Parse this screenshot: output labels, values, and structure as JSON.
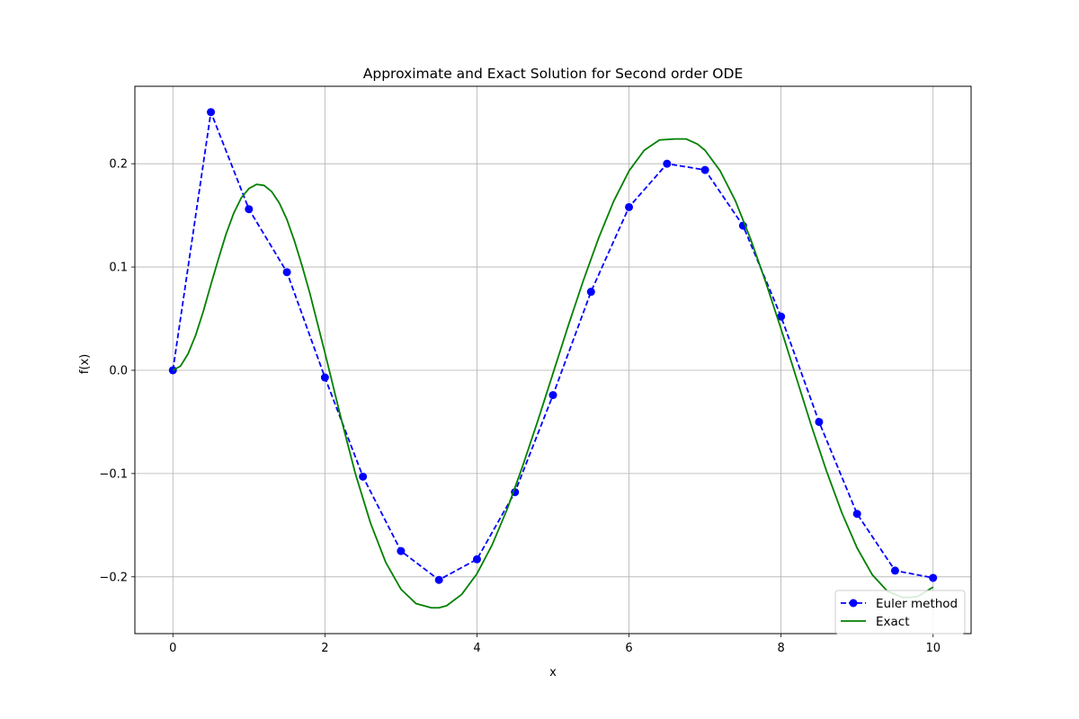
{
  "chart_data": {
    "type": "line",
    "title": "Approximate and Exact Solution for Second order ODE",
    "xlabel": "x",
    "ylabel": "f(x)",
    "xlim": [
      -0.5,
      10.5
    ],
    "ylim": [
      -0.255,
      0.275
    ],
    "xticks": [
      0,
      2,
      4,
      6,
      8,
      10
    ],
    "xtick_labels": [
      "0",
      "2",
      "4",
      "6",
      "8",
      "10"
    ],
    "yticks": [
      -0.2,
      -0.1,
      0.0,
      0.1,
      0.2
    ],
    "ytick_labels": [
      "−0.2",
      "−0.1",
      "0.0",
      "0.1",
      "0.2"
    ],
    "grid": true,
    "legend_position": "bottom-right",
    "series": [
      {
        "name": "Euler method",
        "color": "#0000ff",
        "style": "dashed",
        "marker": "circle",
        "x": [
          0,
          0.5,
          1,
          1.5,
          2,
          2.5,
          3,
          3.5,
          4,
          4.5,
          5,
          5.5,
          6,
          6.5,
          7,
          7.5,
          8,
          8.5,
          9,
          9.5,
          10
        ],
        "y": [
          0.0,
          0.25,
          0.156,
          0.095,
          -0.007,
          -0.103,
          -0.175,
          -0.203,
          -0.183,
          -0.118,
          -0.024,
          0.076,
          0.158,
          0.2,
          0.194,
          0.14,
          0.052,
          -0.05,
          -0.139,
          -0.194,
          -0.201
        ]
      },
      {
        "name": "Exact",
        "color": "#008000",
        "style": "solid",
        "marker": "none",
        "x": [
          0,
          0.1,
          0.2,
          0.3,
          0.4,
          0.5,
          0.6,
          0.7,
          0.8,
          0.9,
          1.0,
          1.1,
          1.2,
          1.3,
          1.4,
          1.5,
          1.6,
          1.7,
          1.8,
          1.9,
          2.0,
          2.2,
          2.4,
          2.6,
          2.8,
          3.0,
          3.2,
          3.4,
          3.5,
          3.6,
          3.8,
          4.0,
          4.2,
          4.4,
          4.6,
          4.8,
          5.0,
          5.2,
          5.4,
          5.6,
          5.8,
          6.0,
          6.2,
          6.4,
          6.6,
          6.75,
          6.9,
          7.0,
          7.2,
          7.4,
          7.6,
          7.8,
          8.0,
          8.2,
          8.4,
          8.6,
          8.8,
          9.0,
          9.2,
          9.4,
          9.6,
          9.7,
          9.8,
          10.0
        ],
        "y": [
          0.0,
          0.004,
          0.016,
          0.034,
          0.057,
          0.083,
          0.108,
          0.132,
          0.152,
          0.167,
          0.176,
          0.18,
          0.179,
          0.173,
          0.162,
          0.146,
          0.125,
          0.101,
          0.075,
          0.046,
          0.017,
          -0.043,
          -0.1,
          -0.148,
          -0.186,
          -0.212,
          -0.226,
          -0.23,
          -0.23,
          -0.228,
          -0.217,
          -0.197,
          -0.169,
          -0.134,
          -0.093,
          -0.049,
          -0.003,
          0.043,
          0.087,
          0.128,
          0.164,
          0.193,
          0.213,
          0.223,
          0.224,
          0.224,
          0.219,
          0.213,
          0.193,
          0.164,
          0.127,
          0.085,
          0.04,
          -0.007,
          -0.054,
          -0.098,
          -0.138,
          -0.172,
          -0.198,
          -0.214,
          -0.22,
          -0.22,
          -0.219,
          -0.21
        ]
      }
    ]
  }
}
